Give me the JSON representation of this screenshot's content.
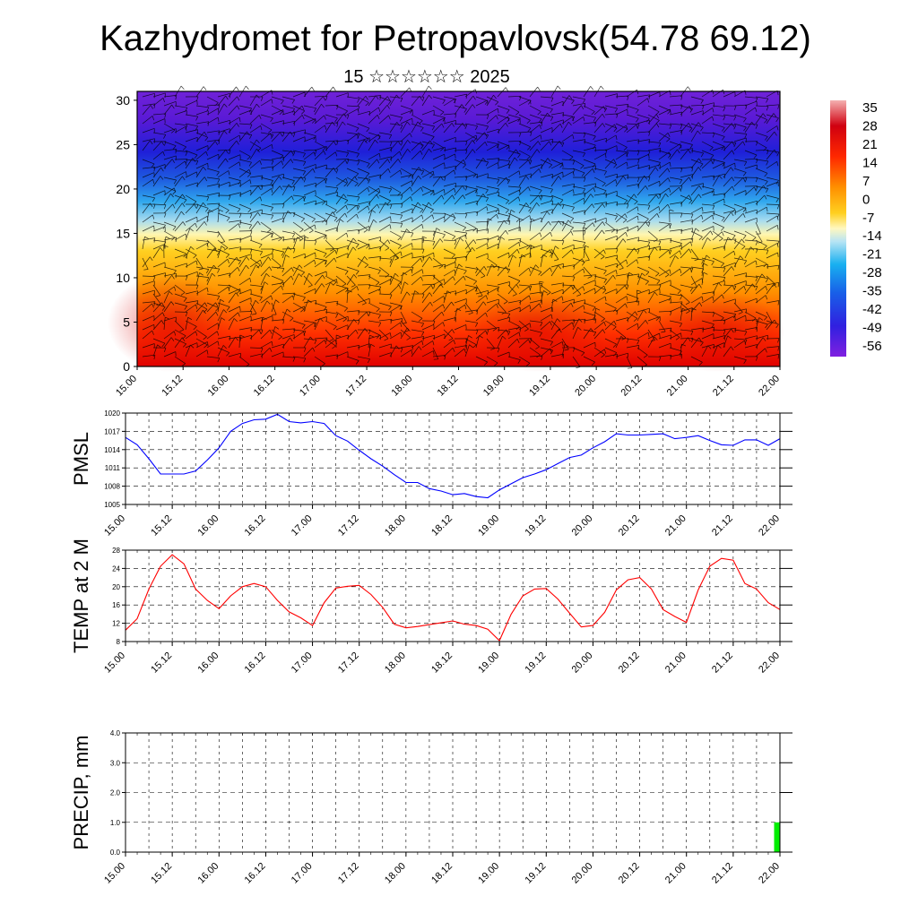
{
  "title": "Kazhydromet for Petropavlovsk(54.78 69.12)",
  "subtitle": "15 ☆☆☆☆☆☆ 2025",
  "colors": {
    "pmsl_line": "#0000ff",
    "temp_line": "#ff0000",
    "precip_bar": "#00ee00",
    "frame": "#000000"
  },
  "chart_data": [
    {
      "type": "heatmap",
      "xlabel": "",
      "ylabel": "",
      "x_ticks": [
        "15.00",
        "15.12",
        "16.00",
        "16.12",
        "17.00",
        "17.12",
        "18.00",
        "18.12",
        "19.00",
        "19.12",
        "20.00",
        "20.12",
        "21.00",
        "21.12",
        "22.00"
      ],
      "y_ticks": [
        0,
        5,
        10,
        15,
        20,
        25,
        30
      ],
      "ylim": [
        0,
        31
      ],
      "colorbar": {
        "labels": [
          35,
          28,
          21,
          14,
          7,
          0,
          -7,
          -14,
          -21,
          -28,
          -35,
          -42,
          -49,
          -56
        ]
      },
      "temperature_profile": {
        "levels": [
          0,
          5,
          10,
          15,
          20,
          25,
          30
        ],
        "values": [
          22,
          16,
          5,
          -12,
          -40,
          -58,
          -48
        ]
      },
      "overlay": "wind barbs"
    },
    {
      "type": "line",
      "ylabel": "PMSL",
      "x_ticks": [
        "15.00",
        "15.12",
        "16.00",
        "16.12",
        "17.00",
        "17.12",
        "18.00",
        "18.12",
        "19.00",
        "19.12",
        "20.00",
        "20.12",
        "21.00",
        "21.12",
        "22.00"
      ],
      "y_ticks": [
        1005,
        1008,
        1011,
        1014,
        1017,
        1020
      ],
      "ylim": [
        1005,
        1020
      ],
      "x": [
        0,
        3,
        6,
        9,
        12,
        15,
        18,
        21,
        24,
        27,
        30,
        33,
        36,
        39,
        42,
        45,
        48,
        51,
        54,
        57,
        60,
        63,
        66,
        69,
        72,
        75,
        78,
        81,
        84,
        87,
        90,
        93,
        96,
        99,
        102,
        105,
        108,
        111,
        114,
        117,
        120,
        123,
        126,
        129,
        132,
        135,
        138,
        141,
        144,
        147,
        150,
        153,
        156,
        159,
        162,
        165,
        168
      ],
      "series": [
        {
          "values": [
            1016,
            1014.8,
            1012.5,
            1010,
            1010,
            1010,
            1010.5,
            1012.3,
            1014.3,
            1017,
            1018.3,
            1018.9,
            1019,
            1019.8,
            1018.6,
            1018.4,
            1018.6,
            1018.3,
            1016.3,
            1015.4,
            1013.9,
            1012.5,
            1011.3,
            1009.9,
            1008.6,
            1008.6,
            1007.6,
            1007.2,
            1006.6,
            1006.8,
            1006.3,
            1006.1,
            1007.4,
            1008.4,
            1009.4,
            1010,
            1010.7,
            1011.7,
            1012.7,
            1013.1,
            1014.3,
            1015.3,
            1016.6,
            1016.4,
            1016.4,
            1016.5,
            1016.6,
            1015.8,
            1016,
            1016.3,
            1015.5,
            1014.8,
            1014.7,
            1015.6,
            1015.6,
            1014.7,
            1015.8
          ]
        }
      ]
    },
    {
      "type": "line",
      "ylabel": "TEMP at 2 M",
      "x_ticks": [
        "15.00",
        "15.12",
        "16.00",
        "16.12",
        "17.00",
        "17.12",
        "18.00",
        "18.12",
        "19.00",
        "19.12",
        "20.00",
        "20.12",
        "21.00",
        "21.12",
        "22.00"
      ],
      "y_ticks": [
        8,
        12,
        16,
        20,
        24,
        28
      ],
      "ylim": [
        8,
        28
      ],
      "x": [
        0,
        3,
        6,
        9,
        12,
        15,
        18,
        21,
        24,
        27,
        30,
        33,
        36,
        39,
        42,
        45,
        48,
        51,
        54,
        57,
        60,
        63,
        66,
        69,
        72,
        75,
        78,
        81,
        84,
        87,
        90,
        93,
        96,
        99,
        102,
        105,
        108,
        111,
        114,
        117,
        120,
        123,
        126,
        129,
        132,
        135,
        138,
        141,
        144,
        147,
        150,
        153,
        156,
        159,
        162,
        165,
        168
      ],
      "series": [
        {
          "values": [
            10.5,
            13,
            19.5,
            24.5,
            27,
            25,
            19.5,
            17,
            15.2,
            18,
            20,
            20.7,
            20,
            17,
            14.5,
            13.2,
            11.5,
            16.5,
            19.7,
            20.1,
            20.3,
            18.3,
            15.5,
            11.8,
            11,
            11.3,
            11.7,
            12.1,
            12.5,
            11.8,
            11.5,
            10.7,
            8.2,
            14,
            18,
            19.5,
            19.6,
            17.3,
            14.2,
            11.2,
            11.5,
            14.4,
            19.3,
            21.5,
            22,
            19.5,
            15,
            13.5,
            12.2,
            19.3,
            24.5,
            26.2,
            25.8,
            20.7,
            19.5,
            16.5,
            15
          ]
        }
      ]
    },
    {
      "type": "bar",
      "ylabel": "PRECIP, mm",
      "x_ticks": [
        "15.00",
        "15.12",
        "16.00",
        "16.12",
        "17.00",
        "17.12",
        "18.00",
        "18.12",
        "19.00",
        "19.12",
        "20.00",
        "20.12",
        "21.00",
        "21.12",
        "22.00"
      ],
      "y_ticks": [
        "0.0",
        "1.0",
        "2.0",
        "3.0",
        "4.0"
      ],
      "ylim": [
        0,
        4
      ],
      "x": [
        0,
        3,
        6,
        9,
        12,
        15,
        18,
        21,
        24,
        27,
        30,
        33,
        36,
        39,
        42,
        45,
        48,
        51,
        54,
        57,
        60,
        63,
        66,
        69,
        72,
        75,
        78,
        81,
        84,
        87,
        90,
        93,
        96,
        99,
        102,
        105,
        108,
        111,
        114,
        117,
        120,
        123,
        126,
        129,
        132,
        135,
        138,
        141,
        144,
        147,
        150,
        153,
        156,
        159,
        162,
        165,
        168
      ],
      "values": [
        0,
        0,
        0,
        0,
        0,
        0,
        0,
        0,
        0,
        0,
        0,
        0,
        0,
        0,
        0,
        0,
        0,
        0,
        0,
        0,
        0,
        0,
        0,
        0,
        0,
        0,
        0,
        0,
        0,
        0,
        0,
        0,
        0,
        0,
        0,
        0,
        0,
        0,
        0,
        0,
        0,
        0,
        0,
        0,
        0,
        0,
        0,
        0,
        0,
        0,
        0,
        0,
        0,
        0,
        0,
        0,
        1.0
      ]
    }
  ]
}
